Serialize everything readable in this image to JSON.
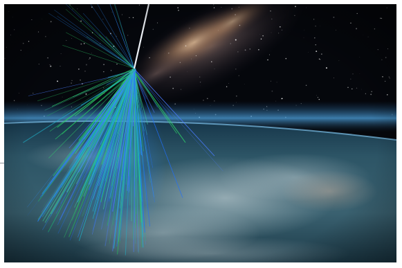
{
  "image": {
    "subject": "cosmic-ray-air-shower-over-earth",
    "colors": {
      "space": "#05070c",
      "milky_way_core": "#c9a27c",
      "airglow": "#5aa9d8",
      "ocean": "#2b4f63",
      "clouds": "#c9d6da",
      "shower_blue": "#1f6fff",
      "shower_green": "#2fd36a",
      "primary_track": "#e8ecf2"
    }
  }
}
